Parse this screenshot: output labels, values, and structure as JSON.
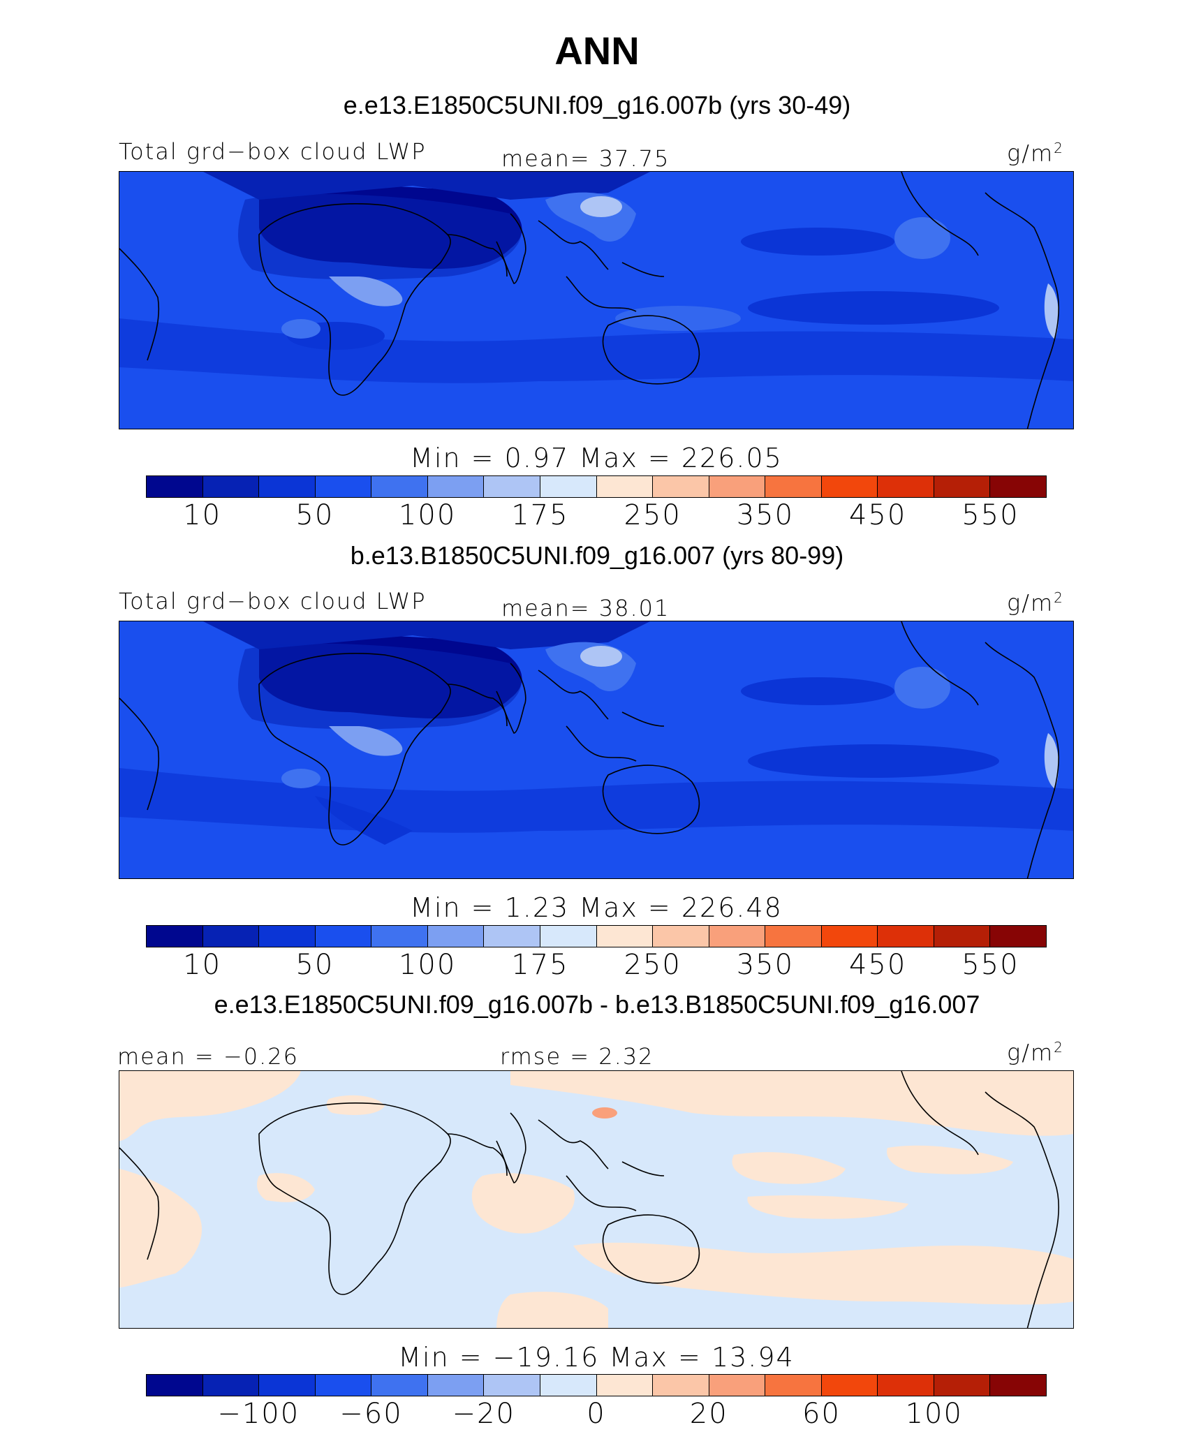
{
  "page": {
    "title": "ANN"
  },
  "panels": [
    {
      "case_title": "e.e13.E1850C5UNI.f09_g16.007b (yrs 30-49)",
      "left_label": "Total grd−box cloud LWP",
      "center_label": "mean=  37.75",
      "units": "g/m",
      "units_sup": "2",
      "minmax": "Min =    0.97 Max = 226.05",
      "colorbar_ticks": [
        "10",
        "50",
        "100",
        "175",
        "250",
        "350",
        "450",
        "550"
      ],
      "base_color": "#1a4fdc"
    },
    {
      "case_title": "b.e13.B1850C5UNI.f09_g16.007 (yrs 80-99)",
      "left_label": "Total grd−box cloud LWP",
      "center_label": "mean=  38.01",
      "units": "g/m",
      "units_sup": "2",
      "minmax": "Min =    1.23 Max = 226.48",
      "colorbar_ticks": [
        "10",
        "50",
        "100",
        "175",
        "250",
        "350",
        "450",
        "550"
      ],
      "base_color": "#1a4fdc"
    },
    {
      "case_title": "e.e13.E1850C5UNI.f09_g16.007b - b.e13.B1850C5UNI.f09_g16.007",
      "left_label": "mean =  −0.26",
      "center_label": "rmse =   2.32",
      "units": "g/m",
      "units_sup": "2",
      "minmax": "Min = −19.16 Max =  13.94",
      "colorbar_ticks": [
        "−100",
        "−60",
        "−20",
        "0",
        "20",
        "60",
        "100"
      ],
      "base_color": "#d7e8fb"
    }
  ],
  "colorbar_colors": [
    "#00078f",
    "#0622b4",
    "#0b35d6",
    "#1a4fee",
    "#3f72f0",
    "#7c9ff2",
    "#aec5f5",
    "#d7e8fb",
    "#fde6d3",
    "#fbc6a8",
    "#f9a07b",
    "#f7743f",
    "#f2470c",
    "#dd3008",
    "#b51f06",
    "#870505"
  ],
  "map_colors": {
    "dark": "#0622b4",
    "mid": "#0b35d6",
    "light": "#3f72f0",
    "pale": "#7c9ff2",
    "diff_pos": "#fde6d3",
    "diff_strong": "#f9a07b"
  }
}
